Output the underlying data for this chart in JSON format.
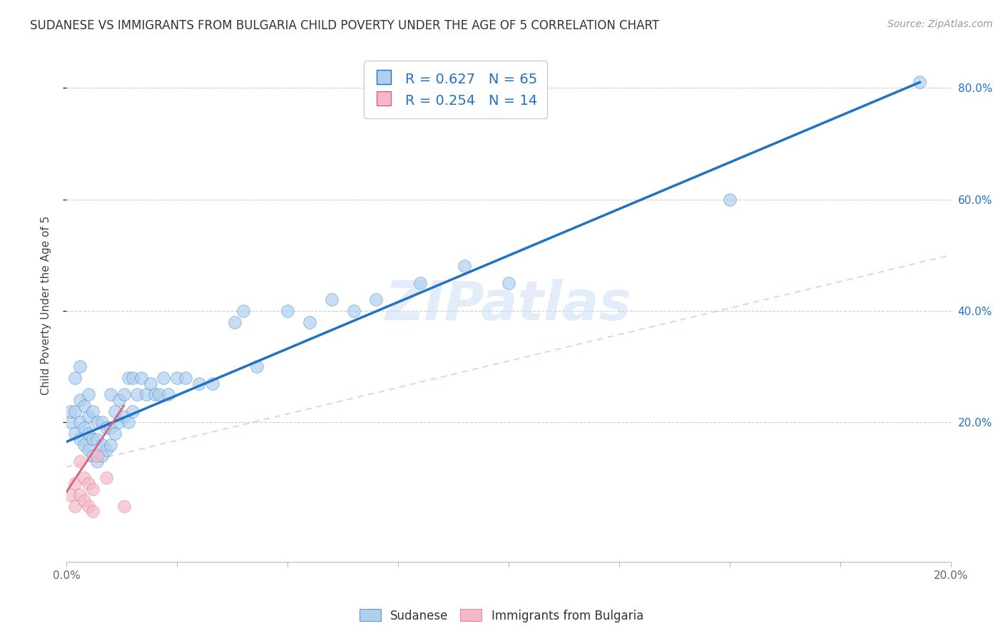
{
  "title": "SUDANESE VS IMMIGRANTS FROM BULGARIA CHILD POVERTY UNDER THE AGE OF 5 CORRELATION CHART",
  "source": "Source: ZipAtlas.com",
  "ylabel": "Child Poverty Under the Age of 5",
  "xlim": [
    0.0,
    0.2
  ],
  "ylim": [
    -0.05,
    0.87
  ],
  "xticks": [
    0.0,
    0.025,
    0.05,
    0.075,
    0.1,
    0.125,
    0.15,
    0.175,
    0.2
  ],
  "ytick_labels_right": [
    "20.0%",
    "40.0%",
    "60.0%",
    "80.0%"
  ],
  "yticks_right": [
    0.2,
    0.4,
    0.6,
    0.8
  ],
  "blue_R": "0.627",
  "blue_N": "65",
  "pink_R": "0.254",
  "pink_N": "14",
  "blue_color": "#aecfee",
  "blue_line_color": "#2272c3",
  "pink_color": "#f4b8c8",
  "pink_line_color": "#e06080",
  "pink_dash_color": "#e8a0b0",
  "legend_label_blue": "Sudanese",
  "legend_label_pink": "Immigrants from Bulgaria",
  "watermark": "ZIPatlas",
  "blue_scatter_x": [
    0.001,
    0.001,
    0.002,
    0.002,
    0.002,
    0.003,
    0.003,
    0.003,
    0.003,
    0.004,
    0.004,
    0.004,
    0.005,
    0.005,
    0.005,
    0.005,
    0.006,
    0.006,
    0.006,
    0.007,
    0.007,
    0.007,
    0.008,
    0.008,
    0.008,
    0.009,
    0.009,
    0.01,
    0.01,
    0.01,
    0.011,
    0.011,
    0.012,
    0.012,
    0.013,
    0.013,
    0.014,
    0.014,
    0.015,
    0.015,
    0.016,
    0.017,
    0.018,
    0.019,
    0.02,
    0.021,
    0.022,
    0.023,
    0.025,
    0.027,
    0.03,
    0.033,
    0.038,
    0.04,
    0.043,
    0.05,
    0.055,
    0.06,
    0.065,
    0.07,
    0.08,
    0.09,
    0.1,
    0.15,
    0.193
  ],
  "blue_scatter_y": [
    0.2,
    0.22,
    0.18,
    0.22,
    0.28,
    0.17,
    0.2,
    0.24,
    0.3,
    0.16,
    0.19,
    0.23,
    0.15,
    0.18,
    0.21,
    0.25,
    0.14,
    0.17,
    0.22,
    0.13,
    0.17,
    0.2,
    0.14,
    0.16,
    0.2,
    0.15,
    0.19,
    0.16,
    0.19,
    0.25,
    0.18,
    0.22,
    0.2,
    0.24,
    0.21,
    0.25,
    0.2,
    0.28,
    0.22,
    0.28,
    0.25,
    0.28,
    0.25,
    0.27,
    0.25,
    0.25,
    0.28,
    0.25,
    0.28,
    0.28,
    0.27,
    0.27,
    0.38,
    0.4,
    0.3,
    0.4,
    0.38,
    0.42,
    0.4,
    0.42,
    0.45,
    0.48,
    0.45,
    0.6,
    0.81
  ],
  "pink_scatter_x": [
    0.001,
    0.002,
    0.002,
    0.003,
    0.003,
    0.004,
    0.004,
    0.005,
    0.005,
    0.006,
    0.006,
    0.007,
    0.009,
    0.013
  ],
  "pink_scatter_y": [
    0.07,
    0.05,
    0.09,
    0.07,
    0.13,
    0.06,
    0.1,
    0.05,
    0.09,
    0.04,
    0.08,
    0.14,
    0.1,
    0.05
  ],
  "blue_trend_x": [
    0.0,
    0.193
  ],
  "blue_trend_y": [
    0.165,
    0.81
  ],
  "pink_solid_trend_x": [
    0.0,
    0.013
  ],
  "pink_solid_trend_y": [
    0.075,
    0.23
  ],
  "pink_dash_trend_x": [
    0.0,
    0.2
  ],
  "pink_dash_trend_y": [
    0.12,
    0.5
  ]
}
